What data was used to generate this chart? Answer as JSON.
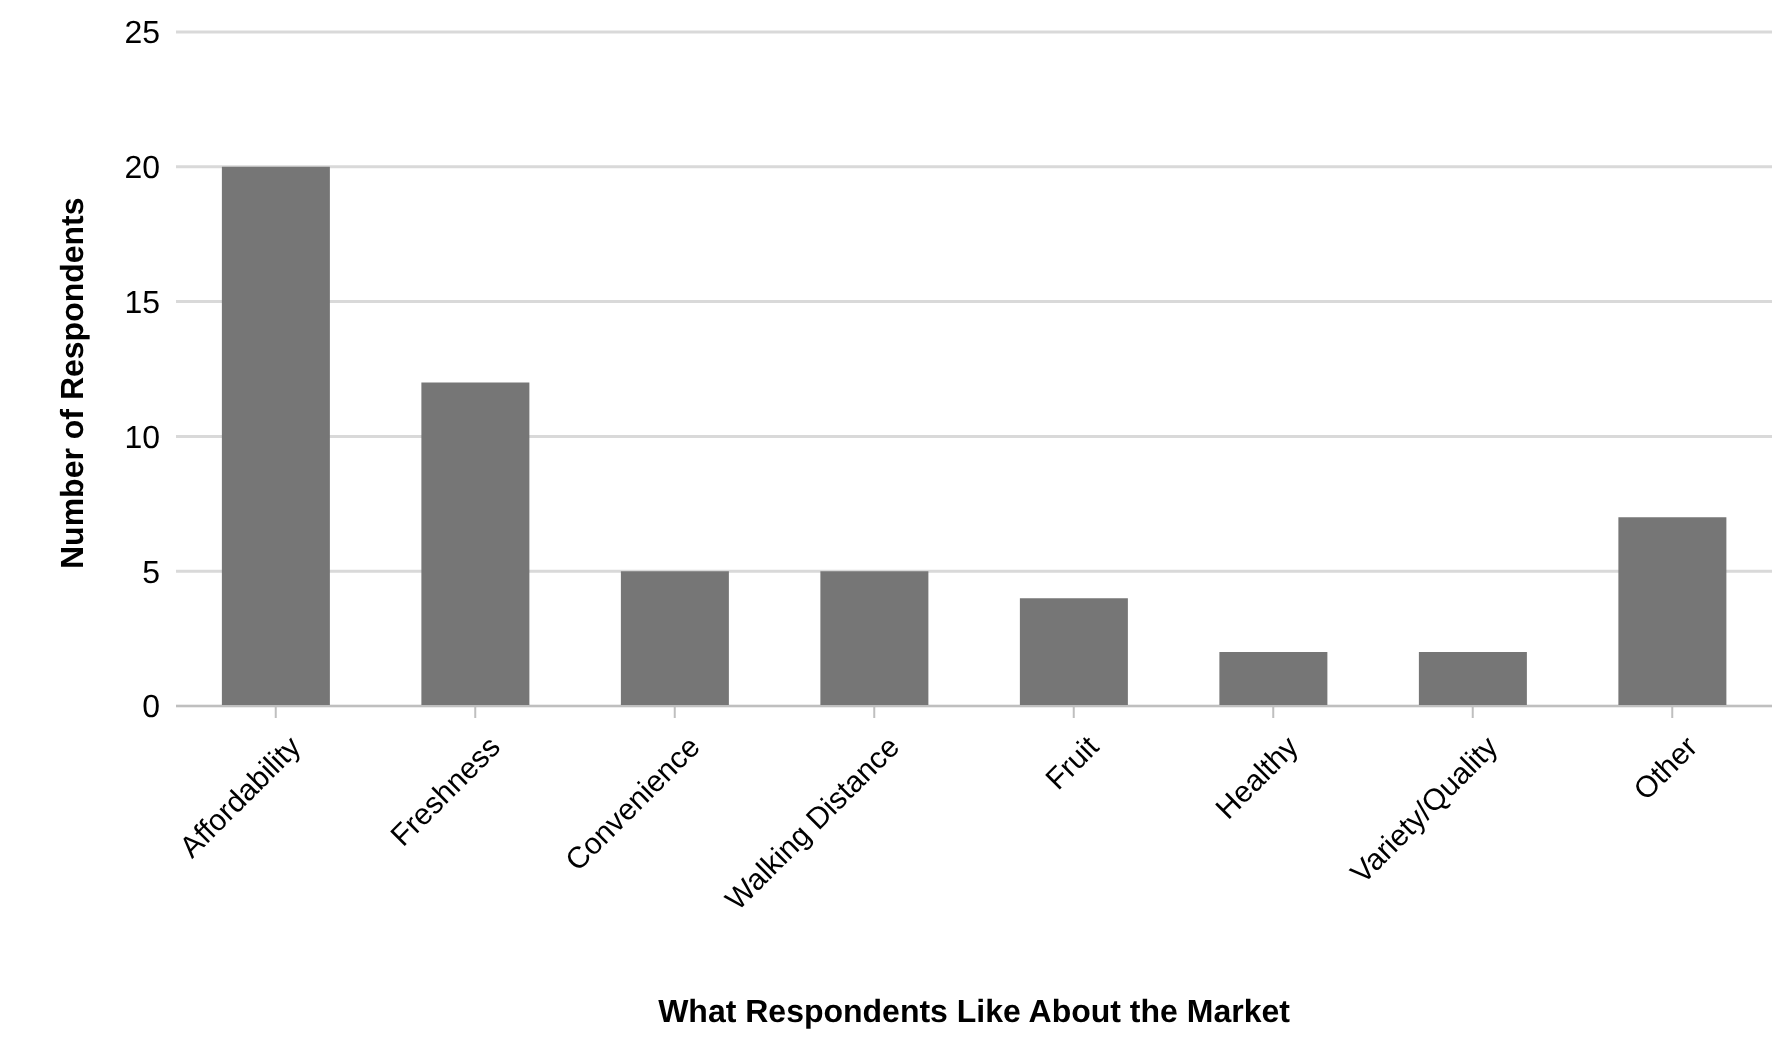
{
  "chart_data": {
    "type": "bar",
    "xlabel": "What Respondents Like About the Market",
    "ylabel": "Number of Respondents",
    "categories": [
      "Affordability",
      "Freshness",
      "Convenience",
      "Walking Distance",
      "Fruit",
      "Healthy",
      "Variety/Quality",
      "Other"
    ],
    "values": [
      20,
      12,
      5,
      5,
      4,
      2,
      2,
      7
    ],
    "color": "#767676",
    "ylim": [
      0,
      25
    ],
    "yticks": [
      0,
      5,
      10,
      15,
      20,
      25
    ],
    "grid": "y",
    "legend": false
  }
}
